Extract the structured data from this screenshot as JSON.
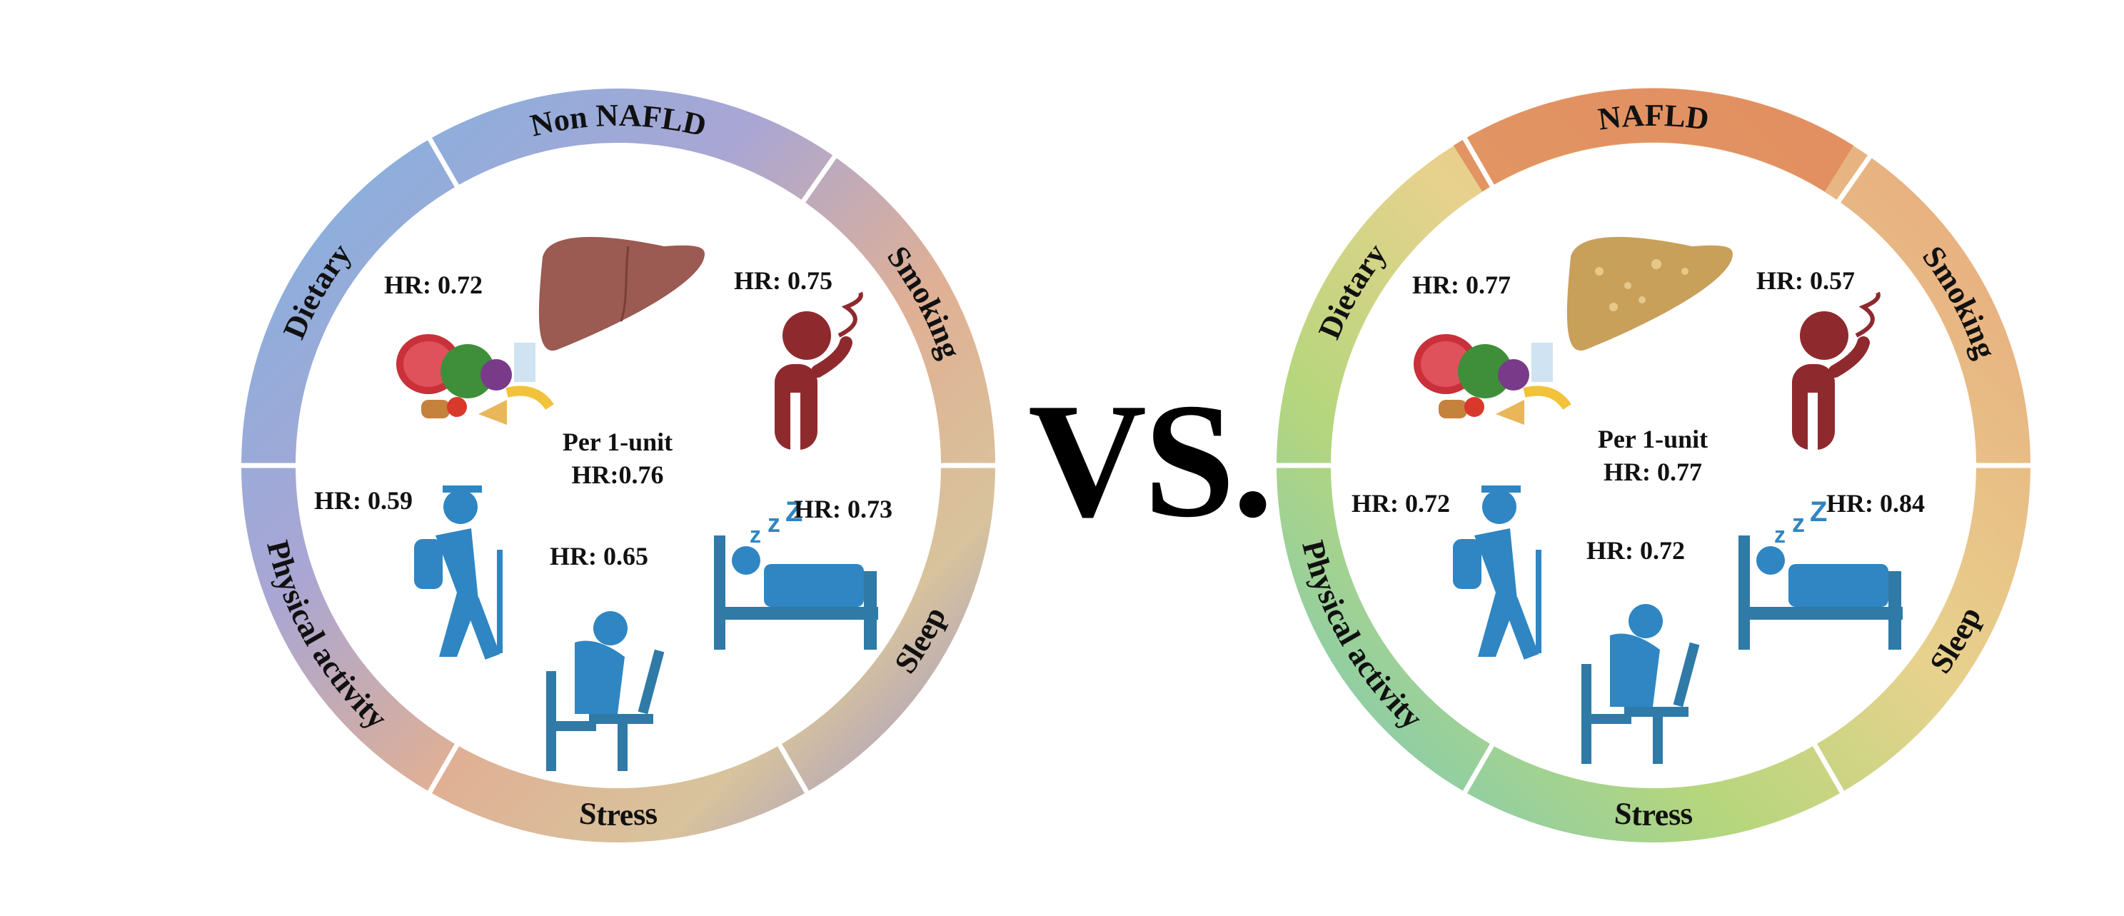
{
  "vs_label": "VS.",
  "panels": [
    {
      "group": "Non NAFLD",
      "segments": {
        "dietary": "Dietary",
        "smoking": "Smoking",
        "sleep": "Sleep",
        "stress": "Stress",
        "physical_activity": "Physical activity"
      },
      "hr": {
        "dietary": "HR: 0.72",
        "smoking": "HR: 0.75",
        "physical_activity": "HR: 0.59",
        "stress": "HR: 0.65",
        "sleep": "HR: 0.73"
      },
      "center": {
        "line1": "Per 1-unit",
        "line2": "HR:0.76"
      },
      "liver": "healthy-liver-icon",
      "colors": {
        "liver": "#9b5a52",
        "smoker": "#8e2a2e",
        "figures": "#2f86c2"
      }
    },
    {
      "group": "NAFLD",
      "segments": {
        "dietary": "Dietary",
        "smoking": "Smoking",
        "sleep": "Sleep",
        "stress": "Stress",
        "physical_activity": "Physical activity"
      },
      "hr": {
        "dietary": "HR: 0.77",
        "smoking": "HR: 0.57",
        "physical_activity": "HR: 0.72",
        "stress": "HR: 0.72",
        "sleep": "HR: 0.84"
      },
      "center": {
        "line1": "Per 1-unit",
        "line2": "HR: 0.77"
      },
      "liver": "fatty-liver-icon",
      "colors": {
        "liver": "#c9a05a",
        "smoker": "#8e2a2e",
        "figures": "#2f86c2"
      }
    }
  ]
}
